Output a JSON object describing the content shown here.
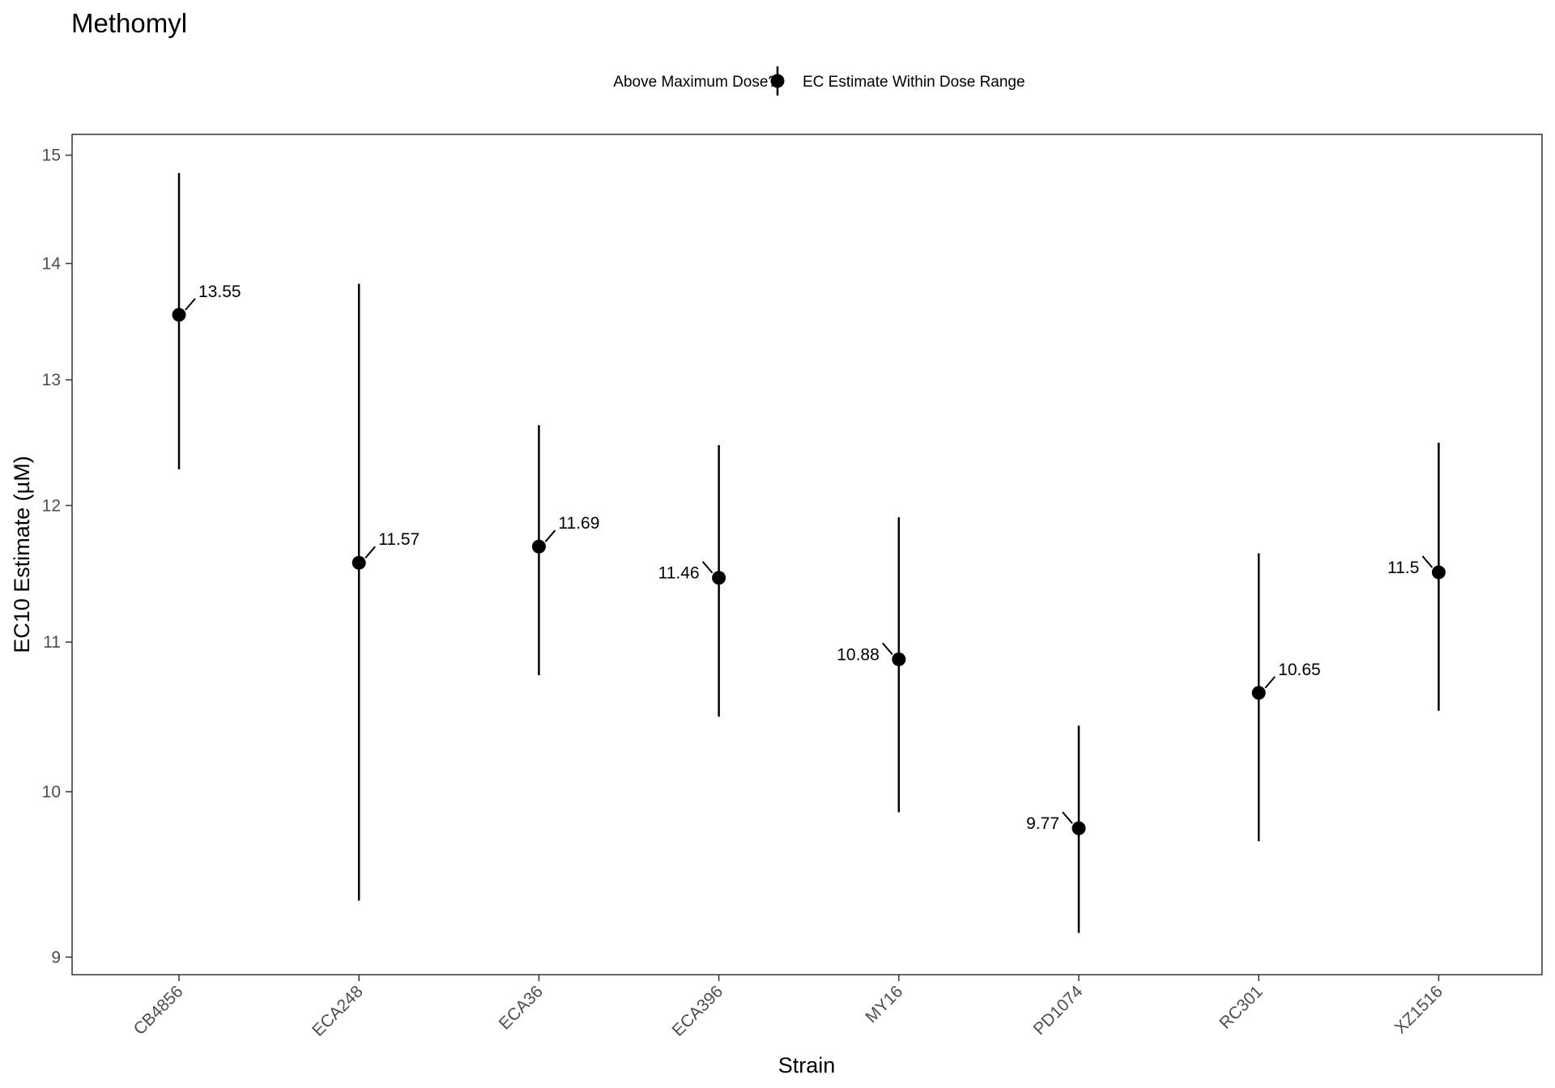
{
  "chart_data": {
    "type": "scatter",
    "title": "Methomyl",
    "xlabel": "Strain",
    "ylabel": "EC10 Estimate (µM)",
    "y_scale": "log",
    "ylim": [
      8.9,
      15.2
    ],
    "y_ticks": [
      9,
      10,
      11,
      12,
      13,
      14,
      15
    ],
    "grid": false,
    "legend": {
      "position": "top",
      "title": "Above Maximum Dose?",
      "entries": [
        "EC Estimate Within Dose Range"
      ]
    },
    "categories": [
      "CB4856",
      "ECA248",
      "ECA36",
      "ECA396",
      "MY16",
      "PD1074",
      "RC301",
      "XZ1516"
    ],
    "series": [
      {
        "name": "EC Estimate Within Dose Range",
        "values": [
          13.55,
          11.57,
          11.69,
          11.46,
          10.88,
          9.77,
          10.65,
          11.5
        ],
        "lower": [
          12.28,
          9.33,
          10.77,
          10.49,
          9.87,
          9.14,
          9.69,
          10.53
        ],
        "upper": [
          14.83,
          13.82,
          12.63,
          12.47,
          11.91,
          10.43,
          11.64,
          12.49
        ],
        "labels": [
          "13.55",
          "11.57",
          "11.69",
          "11.46",
          "10.88",
          "9.77",
          "10.65",
          "11.5"
        ],
        "label_side": [
          "right",
          "right",
          "right",
          "left",
          "left",
          "left",
          "right",
          "left"
        ]
      }
    ]
  }
}
